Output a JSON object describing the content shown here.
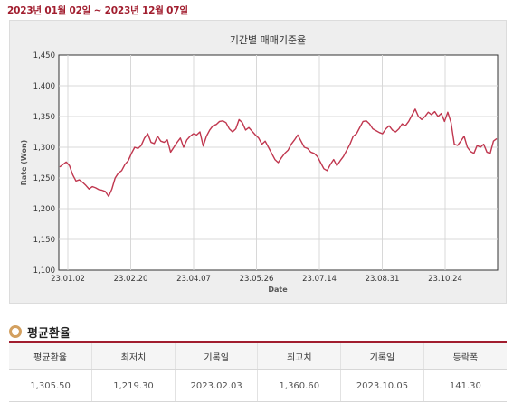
{
  "period": {
    "text": "2023년 01월 02일 ~ 2023년 12월 07일"
  },
  "chart_data": {
    "type": "line",
    "title": "기간별 매매기준율",
    "xlabel": "Date",
    "ylabel": "Rate (Won)",
    "ylim": [
      1100,
      1450
    ],
    "yticks": [
      "1,100",
      "1,150",
      "1,200",
      "1,250",
      "1,300",
      "1,350",
      "1,400",
      "1,450"
    ],
    "xticks": [
      "23.01.02",
      "23.02.20",
      "23.04.07",
      "23.05.26",
      "23.07.14",
      "23.08.31",
      "23.10.24"
    ],
    "grid": true,
    "line_color": "#c0374f",
    "series": [
      {
        "values": [
          1268,
          1272,
          1276,
          1270,
          1255,
          1245,
          1247,
          1243,
          1238,
          1232,
          1236,
          1234,
          1231,
          1230,
          1228,
          1220,
          1232,
          1250,
          1258,
          1262,
          1272,
          1278,
          1290,
          1300,
          1298,
          1303,
          1315,
          1322,
          1308,
          1306,
          1318,
          1310,
          1308,
          1312,
          1292,
          1300,
          1308,
          1315,
          1300,
          1312,
          1318,
          1322,
          1320,
          1325,
          1302,
          1318,
          1328,
          1335,
          1337,
          1342,
          1343,
          1340,
          1330,
          1325,
          1330,
          1345,
          1340,
          1328,
          1332,
          1326,
          1320,
          1315,
          1305,
          1310,
          1300,
          1290,
          1280,
          1275,
          1283,
          1290,
          1295,
          1305,
          1312,
          1320,
          1310,
          1300,
          1298,
          1292,
          1290,
          1285,
          1275,
          1265,
          1262,
          1272,
          1280,
          1270,
          1278,
          1285,
          1295,
          1305,
          1318,
          1322,
          1332,
          1342,
          1343,
          1338,
          1330,
          1327,
          1324,
          1322,
          1330,
          1335,
          1328,
          1325,
          1330,
          1338,
          1335,
          1342,
          1352,
          1362,
          1350,
          1345,
          1350,
          1357,
          1353,
          1358,
          1350,
          1355,
          1342,
          1357,
          1340,
          1305,
          1303,
          1310,
          1318,
          1300,
          1293,
          1290,
          1303,
          1300,
          1305,
          1292,
          1290,
          1310,
          1314
        ]
      }
    ]
  },
  "summary": {
    "title": "평균환율",
    "headers": [
      "평균환율",
      "최저치",
      "기록일",
      "최고치",
      "기록일",
      "등락폭"
    ],
    "values": [
      "1,305.50",
      "1,219.30",
      "2023.02.03",
      "1,360.60",
      "2023.10.05",
      "141.30"
    ]
  },
  "colors": {
    "accent": "#a11d2e",
    "ring": "#d3a05f"
  }
}
